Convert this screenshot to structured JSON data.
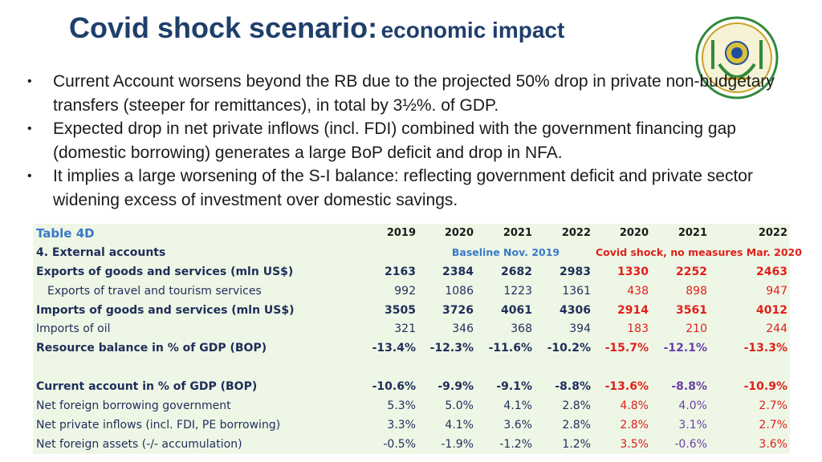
{
  "title": {
    "main": "Covid shock scenario:",
    "sub": "economic impact"
  },
  "logo": {
    "name": "coat-of-arms-seal"
  },
  "bullets": [
    "Current Account worsens beyond the RB due to the projected 50% drop in private non-budgetary transfers (steeper for remittances), in total by 3½%. of GDP.",
    "Expected drop in net private inflows (incl. FDI) combined with the government financing gap (domestic borrowing) generates a large BoP deficit and drop in NFA.",
    "It implies a large worsening of the S-I balance: reflecting government deficit and private sector widening excess of investment over domestic savings."
  ],
  "table": {
    "caption": "Table 4D",
    "years": [
      "2019",
      "2020",
      "2021",
      "2022",
      "2020",
      "2021",
      "2022"
    ],
    "section": "4. External accounts",
    "baseline_label": "Baseline Nov. 2019",
    "shock_label": "Covid shock, no measures Mar. 2020",
    "rows": [
      {
        "label": "Exports of goods and services (mln US$)",
        "values": [
          "2163",
          "2384",
          "2682",
          "2983",
          "1330",
          "2252",
          "2463"
        ]
      },
      {
        "label": "Exports of travel and tourism services",
        "values": [
          "992",
          "1086",
          "1223",
          "1361",
          "438",
          "898",
          "947"
        ]
      },
      {
        "label": "Imports of goods and services (mln US$)",
        "values": [
          "3505",
          "3726",
          "4061",
          "4306",
          "2914",
          "3561",
          "4012"
        ]
      },
      {
        "label": "Imports of oil",
        "values": [
          "321",
          "346",
          "368",
          "394",
          "183",
          "210",
          "244"
        ]
      },
      {
        "label": "Resource balance in % of GDP (BOP)",
        "values": [
          "-13.4%",
          "-12.3%",
          "-11.6%",
          "-10.2%",
          "-15.7%",
          "-12.1%",
          "-13.3%"
        ]
      },
      {
        "label": "Current account in % of GDP (BOP)",
        "values": [
          "-10.6%",
          "-9.9%",
          "-9.1%",
          "-8.8%",
          "-13.6%",
          "-8.8%",
          "-10.9%"
        ]
      },
      {
        "label": "Net foreign borrowing government",
        "values": [
          "5.3%",
          "5.0%",
          "4.1%",
          "2.8%",
          "4.8%",
          "4.0%",
          "2.7%"
        ]
      },
      {
        "label": "Net private inflows (incl. FDI, PE borrowing)",
        "values": [
          "3.3%",
          "4.1%",
          "3.6%",
          "2.8%",
          "2.8%",
          "3.1%",
          "2.7%"
        ]
      },
      {
        "label": "Net foreign assets (-/- accumulation)",
        "values": [
          "-0.5%",
          "-1.9%",
          "-1.2%",
          "1.2%",
          "3.5%",
          "-0.6%",
          "3.6%"
        ]
      }
    ]
  },
  "colors": {
    "title": "#1f3f6b",
    "table_bg": "#eef7e6",
    "shock": "#e0201b",
    "improve": "#6a3fa8",
    "baseline_note": "#3a78c9"
  }
}
